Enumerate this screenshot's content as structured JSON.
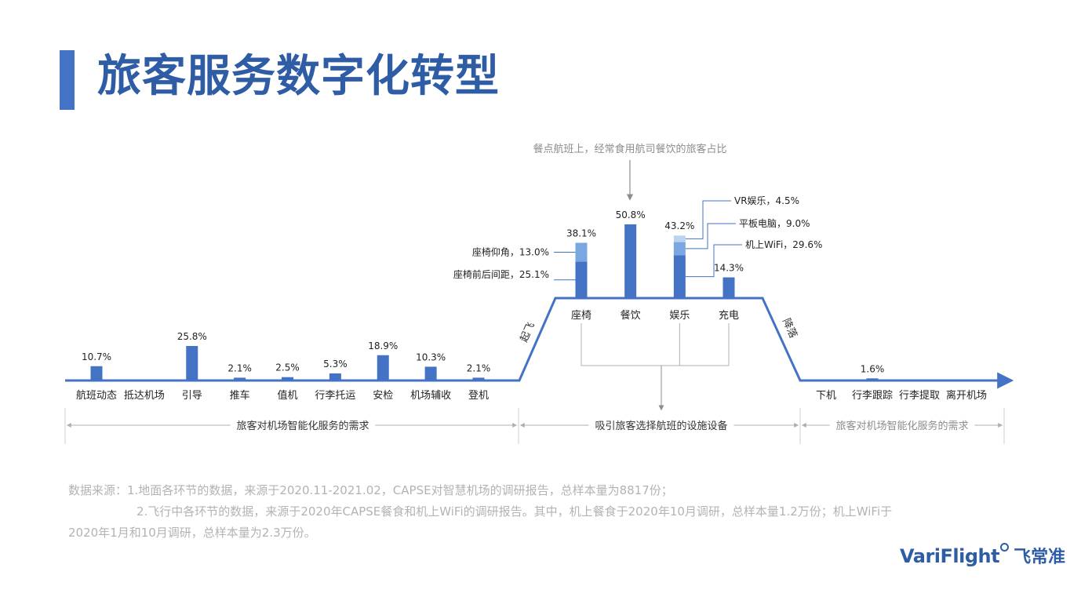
{
  "page": {
    "title": "旅客服务数字化转型"
  },
  "chart_data": {
    "type": "bar",
    "ground_categories": [
      "航班动态",
      "抵达机场",
      "引导",
      "推车",
      "值机",
      "行李托运",
      "安检",
      "机场辅收",
      "登机"
    ],
    "ground_values": [
      10.7,
      null,
      25.8,
      2.1,
      2.5,
      5.3,
      18.9,
      10.3,
      2.1
    ],
    "ground_labels": [
      "10.7%",
      "",
      "25.8%",
      "2.1%",
      "2.5%",
      "5.3%",
      "18.9%",
      "10.3%",
      "2.1%"
    ],
    "flight_categories": [
      "座椅",
      "餐饮",
      "娱乐",
      "充电"
    ],
    "flight_totals": [
      38.1,
      50.8,
      43.2,
      14.3
    ],
    "flight_total_labels": [
      "38.1%",
      "50.8%",
      "43.2%",
      "14.3%"
    ],
    "flight_stacks": [
      [
        {
          "value": 25.1,
          "label": "座椅前后间距，25.1%",
          "shade": "dark"
        },
        {
          "value": 13.0,
          "label": "座椅仰角，13.0%",
          "shade": "mid"
        }
      ],
      [
        {
          "value": 50.8,
          "label": "",
          "shade": "dark"
        }
      ],
      [
        {
          "value": 29.6,
          "label": "机上WiFi，29.6%",
          "shade": "dark"
        },
        {
          "value": 9.0,
          "label": "平板电脑，9.0%",
          "shade": "mid"
        },
        {
          "value": 4.5,
          "label": "VR娱乐，4.5%",
          "shade": "light"
        }
      ],
      [
        {
          "value": 14.3,
          "label": "",
          "shade": "dark"
        }
      ]
    ],
    "arrival_categories": [
      "下机",
      "行李跟踪",
      "行李提取",
      "离开机场"
    ],
    "arrival_values": [
      null,
      1.6,
      null,
      null
    ],
    "arrival_labels": [
      "",
      "1.6%",
      "",
      ""
    ],
    "takeoff_label": "起飞",
    "landing_label": "降落",
    "meal_note": "餐点航班上，经常食用航司餐饮的旅客占比",
    "sections": [
      "旅客对机场智能化服务的需求",
      "吸引旅客选择航班的设施设备",
      "旅客对机场智能化服务的需求"
    ],
    "colors": {
      "dark": "#4472c4",
      "mid": "#7aa7e0",
      "light": "#bcd3f0",
      "axis": "#4472c4",
      "note": "#8c8c8c"
    }
  },
  "source": {
    "line1": "数据来源：1.地面各环节的数据，来源于2020.11-2021.02，CAPSE对智慧机场的调研报告，总样本量为8817份；",
    "line2": "2.飞行中各环节的数据，来源于2020年CAPSE餐食和机上WiFi的调研报告。其中，机上餐食于2020年10月调研，总样本量1.2万份；机上WiFi于",
    "line3": "2020年1月和10月调研，总样本量为2.3万份。"
  },
  "logo": {
    "en": "VariFlight",
    "cn": "飞常准"
  }
}
